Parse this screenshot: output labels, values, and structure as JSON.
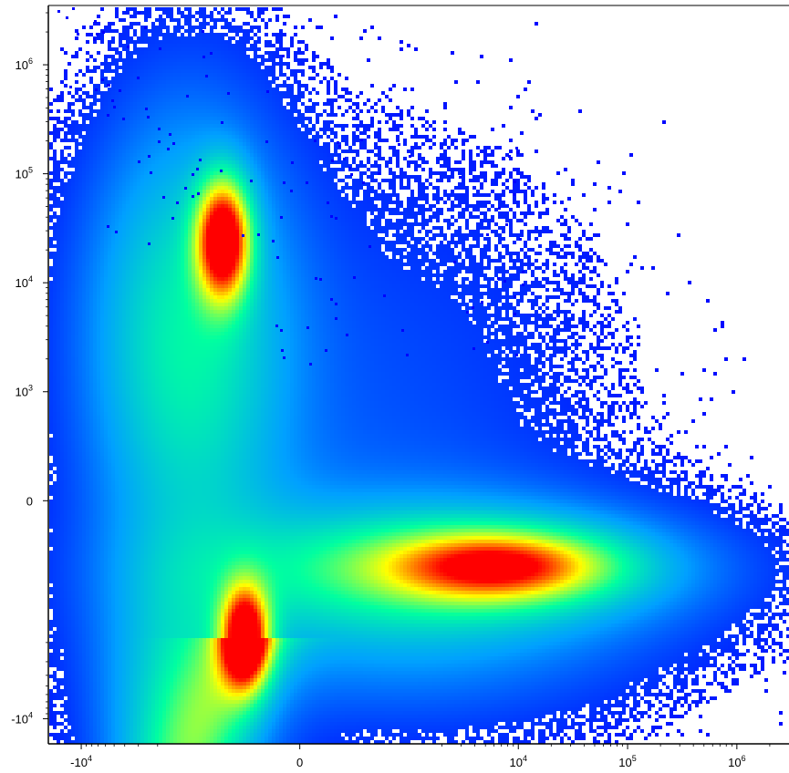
{
  "chart_data": {
    "type": "heatmap",
    "title": "",
    "xlabel": "",
    "ylabel": "",
    "x_scale": "biexponential",
    "y_scale": "biexponential",
    "xlim": [
      -20000,
      3000000
    ],
    "ylim": [
      -17000,
      3500000
    ],
    "x_ticks": [
      {
        "value": -10000,
        "base": "-10",
        "exp": "4"
      },
      {
        "value": 0,
        "base": "0",
        "exp": ""
      },
      {
        "value": 10000,
        "base": "10",
        "exp": "4"
      },
      {
        "value": 100000,
        "base": "10",
        "exp": "5"
      },
      {
        "value": 1000000,
        "base": "10",
        "exp": "6"
      }
    ],
    "y_ticks": [
      {
        "value": 1000000,
        "base": "10",
        "exp": "6"
      },
      {
        "value": 100000,
        "base": "10",
        "exp": "5"
      },
      {
        "value": 10000,
        "base": "10",
        "exp": "4"
      },
      {
        "value": 1000,
        "base": "10",
        "exp": "3"
      },
      {
        "value": 0,
        "base": "0",
        "exp": ""
      },
      {
        "value": -10000,
        "base": "-10",
        "exp": "4"
      }
    ],
    "colormap": [
      "#0000ff",
      "#00a0ff",
      "#00ffa0",
      "#ffff00",
      "#ff0000"
    ],
    "populations": [
      {
        "x_center": -700,
        "y_center": 25000,
        "density": 1.0
      },
      {
        "x_center": -500,
        "y_center": -1800,
        "density": 1.0
      },
      {
        "x_center": 7000,
        "y_center": -600,
        "density": 0.55
      }
    ],
    "grid": false,
    "legend": "none"
  }
}
